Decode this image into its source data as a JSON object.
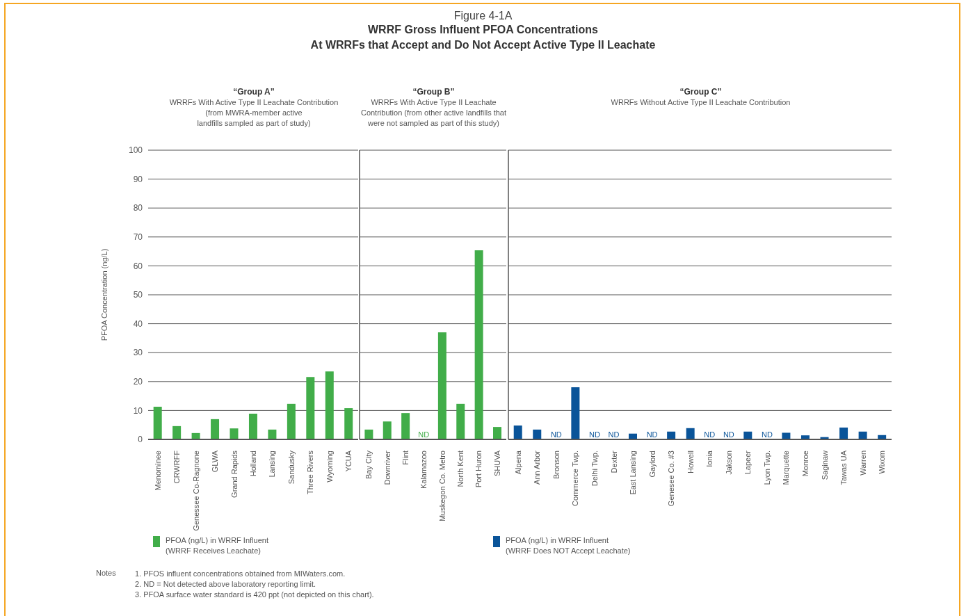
{
  "chart_data": [
    {
      "type": "other",
      "title": "Figure 4-1A",
      "subtitle": "WRRF Gross Influent PFOA Concentrations\nAt WRRFs that Accept and Do Not Accept Active Type II Leachate"
    },
    {
      "type": "bar",
      "title": "“Group A”",
      "subtitle": "WRRFs With Active Type II Leachate Contribution\n(from MWRA-member active\nlandfills sampled as part of study)",
      "ylabel": "PFOA Concentration (ng/L)",
      "categories": [
        "Menominee",
        "CRWRFF",
        "Genessee  Co-Ragnone",
        "GLWA",
        "Grand Rapids",
        "Holland",
        "Lansing",
        "Sandusky",
        "Three Rivers",
        "Wyoming",
        "YCUA"
      ],
      "series": [
        {
          "name": "PFOA (ng/L) in WRRF Influent\n(WRRF Receives Leachate)",
          "color": "#41ad49",
          "values": [
            11.3,
            4.6,
            2.2,
            7,
            3.8,
            8.9,
            3.4,
            12.3,
            21.6,
            23.5,
            10.8
          ]
        }
      ],
      "ylim": [
        0,
        100
      ],
      "yticks": [
        0,
        10,
        20,
        30,
        40,
        50,
        60,
        70,
        80,
        90,
        100
      ],
      "grid": "y",
      "legend": "bottom"
    },
    {
      "type": "bar",
      "title": "“Group B”",
      "subtitle": "WRRFs With Active Type II Leachate\nContribution (from other active landfills that\nwere not sampled as part of this study)",
      "categories": [
        "Bay City",
        "Downriver",
        "Flint",
        "Kalamazoo",
        "Muskegon Co. Metro",
        "North Kent",
        "Port Huron",
        "SHUVA"
      ],
      "series": [
        {
          "color": "#41ad49",
          "values": [
            3.4,
            6.2,
            9.1,
            null,
            37,
            12.3,
            65.4,
            4.3
          ],
          "value_labels": [
            null,
            null,
            null,
            "ND",
            null,
            null,
            null,
            null
          ]
        }
      ],
      "ylim": [
        0,
        100
      ],
      "yticks": [
        0,
        10,
        20,
        30,
        40,
        50,
        60,
        70,
        80,
        90,
        100
      ],
      "grid": "y",
      "tick_labels": "x"
    },
    {
      "type": "bar",
      "title": "“Group C”",
      "subtitle": "WRRFs Without Active Type II Leachate Contribution",
      "categories": [
        "Alpena",
        "Ann Arbor",
        "Bronson",
        "Commerce Twp.",
        "Delhi Twp.",
        "Dexter",
        "East Lansing",
        "Gaylord",
        "Genesee Co. #3",
        "Howell",
        "Ionia",
        "Jakson",
        "Lapeer",
        "Lyon Twp.",
        "Marquette",
        "Monroe",
        "Saginaw",
        "Tawas UA",
        "Warren",
        "Wixom"
      ],
      "series": [
        {
          "name": "PFOA (ng/L) in WRRF Influent\n(WRRF Does NOT Accept Leachate)",
          "color": "#0a5499",
          "values": [
            4.8,
            3.4,
            null,
            18,
            null,
            null,
            2,
            null,
            2.7,
            3.9,
            null,
            null,
            2.7,
            null,
            2.3,
            1.4,
            0.8,
            4.1,
            2.7,
            1.5
          ],
          "value_labels": [
            null,
            null,
            "ND",
            null,
            "ND",
            "ND",
            null,
            "ND",
            null,
            null,
            "ND",
            "ND",
            null,
            "ND",
            null,
            null,
            null,
            null,
            null,
            null
          ]
        }
      ],
      "ylim": [
        0,
        100
      ],
      "yticks": [
        0,
        10,
        20,
        30,
        40,
        50,
        60,
        70,
        80,
        90,
        100
      ],
      "grid": "y",
      "tick_labels": "x",
      "legend": "bottom"
    },
    {
      "type": "other",
      "annotations": [
        "Notes",
        "1. PFOS influent concentrations obtained from MIWaters.com.",
        "2.  ND = Not detected above laboratory reporting limit.",
        "3.  PFOA surface water standard is 420 ppt (not depicted on this chart)."
      ]
    }
  ]
}
